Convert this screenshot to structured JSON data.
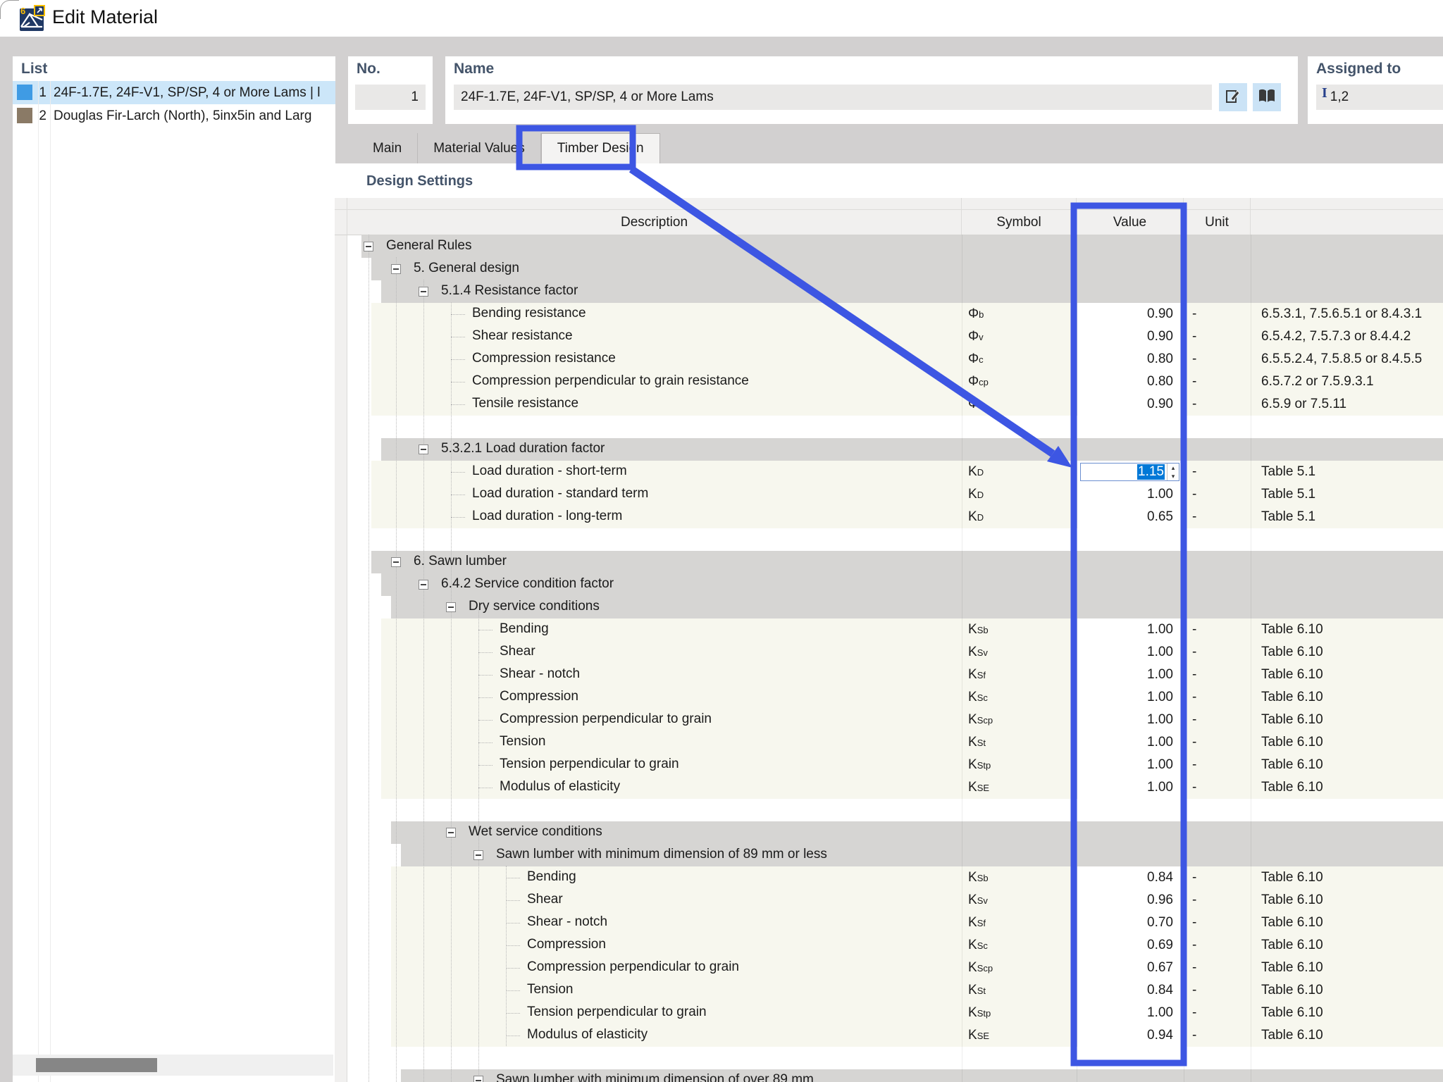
{
  "window": {
    "title": "Edit Material"
  },
  "colors": {
    "annotation_blue": "#3d56e3",
    "selection_blue": "#0078d7",
    "header_text": "#44546a",
    "list_item1_swatch": "#3f9be4",
    "list_item2_swatch": "#8a7a66"
  },
  "list_panel": {
    "title": "List",
    "items": [
      {
        "no": "1",
        "name": "24F-1.7E, 24F-V1, SP/SP, 4 or More Lams | l",
        "swatch": "#3f9be4",
        "selected": true
      },
      {
        "no": "2",
        "name": "Douglas Fir-Larch (North), 5inx5in and Larg",
        "swatch": "#8a7a66",
        "selected": false
      }
    ]
  },
  "no_panel": {
    "label": "No.",
    "value": "1"
  },
  "name_panel": {
    "label": "Name",
    "value": "24F-1.7E, 24F-V1, SP/SP, 4 or More Lams"
  },
  "assigned_panel": {
    "label": "Assigned to",
    "marker": "I",
    "value": "1,2"
  },
  "tabs": [
    {
      "label": "Main",
      "active": false
    },
    {
      "label": "Material Values",
      "active": false
    },
    {
      "label": "Timber Design",
      "active": true
    }
  ],
  "section_title": "Design Settings",
  "table": {
    "headers": {
      "description": "Description",
      "symbol": "Symbol",
      "value": "Value",
      "unit": "Unit"
    },
    "rows": [
      {
        "t": "g",
        "d": 0,
        "label": "General Rules"
      },
      {
        "t": "g",
        "d": 1,
        "label": "5. General design"
      },
      {
        "t": "g",
        "d": 2,
        "label": "5.1.4 Resistance factor"
      },
      {
        "t": "l",
        "d": 3,
        "label": "Bending resistance",
        "sym": "Φ",
        "sub": "b",
        "value": "0.90",
        "unit": "-",
        "ref": "6.5.3.1, 7.5.6.5.1 or 8.4.3.1"
      },
      {
        "t": "l",
        "d": 3,
        "label": "Shear resistance",
        "sym": "Φ",
        "sub": "v",
        "value": "0.90",
        "unit": "-",
        "ref": "6.5.4.2, 7.5.7.3 or 8.4.4.2"
      },
      {
        "t": "l",
        "d": 3,
        "label": "Compression resistance",
        "sym": "Φ",
        "sub": "c",
        "value": "0.80",
        "unit": "-",
        "ref": "6.5.5.2.4, 7.5.8.5 or 8.4.5.5"
      },
      {
        "t": "l",
        "d": 3,
        "label": "Compression perpendicular to grain resistance",
        "sym": "Φ",
        "sub": "cp",
        "value": "0.80",
        "unit": "-",
        "ref": "6.5.7.2 or 7.5.9.3.1"
      },
      {
        "t": "l",
        "d": 3,
        "label": "Tensile resistance",
        "sym": "Φ",
        "sub": "t",
        "value": "0.90",
        "unit": "-",
        "ref": "6.5.9 or 7.5.11"
      },
      {
        "t": "e"
      },
      {
        "t": "g",
        "d": 2,
        "label": "5.3.2.1 Load duration factor"
      },
      {
        "t": "l",
        "d": 3,
        "label": "Load duration - short-term",
        "sym": "K",
        "sub": "D",
        "value": "1.15",
        "unit": "-",
        "ref": "Table 5.1",
        "input": true,
        "selected_text": "1.15"
      },
      {
        "t": "l",
        "d": 3,
        "label": "Load duration - standard term",
        "sym": "K",
        "sub": "D",
        "value": "1.00",
        "unit": "-",
        "ref": "Table 5.1"
      },
      {
        "t": "l",
        "d": 3,
        "label": "Load duration - long-term",
        "sym": "K",
        "sub": "D",
        "value": "0.65",
        "unit": "-",
        "ref": "Table 5.1"
      },
      {
        "t": "e"
      },
      {
        "t": "g",
        "d": 1,
        "label": "6. Sawn lumber"
      },
      {
        "t": "g",
        "d": 2,
        "label": "6.4.2 Service condition factor"
      },
      {
        "t": "g",
        "d": 3,
        "label": "Dry service conditions"
      },
      {
        "t": "l",
        "d": 4,
        "label": "Bending",
        "sym": "K",
        "sub": "Sb",
        "value": "1.00",
        "unit": "-",
        "ref": "Table 6.10"
      },
      {
        "t": "l",
        "d": 4,
        "label": "Shear",
        "sym": "K",
        "sub": "Sv",
        "value": "1.00",
        "unit": "-",
        "ref": "Table 6.10"
      },
      {
        "t": "l",
        "d": 4,
        "label": "Shear - notch",
        "sym": "K",
        "sub": "Sf",
        "value": "1.00",
        "unit": "-",
        "ref": "Table 6.10"
      },
      {
        "t": "l",
        "d": 4,
        "label": "Compression",
        "sym": "K",
        "sub": "Sc",
        "value": "1.00",
        "unit": "-",
        "ref": "Table 6.10"
      },
      {
        "t": "l",
        "d": 4,
        "label": "Compression perpendicular to grain",
        "sym": "K",
        "sub": "Scp",
        "value": "1.00",
        "unit": "-",
        "ref": "Table 6.10"
      },
      {
        "t": "l",
        "d": 4,
        "label": "Tension",
        "sym": "K",
        "sub": "St",
        "value": "1.00",
        "unit": "-",
        "ref": "Table 6.10"
      },
      {
        "t": "l",
        "d": 4,
        "label": "Tension perpendicular to grain",
        "sym": "K",
        "sub": "Stp",
        "value": "1.00",
        "unit": "-",
        "ref": "Table 6.10"
      },
      {
        "t": "l",
        "d": 4,
        "label": "Modulus of elasticity",
        "sym": "K",
        "sub": "SE",
        "value": "1.00",
        "unit": "-",
        "ref": "Table 6.10"
      },
      {
        "t": "e"
      },
      {
        "t": "g",
        "d": 3,
        "label": "Wet service conditions"
      },
      {
        "t": "g",
        "d": 4,
        "label": "Sawn lumber with minimum dimension of 89 mm or less"
      },
      {
        "t": "l",
        "d": 5,
        "label": "Bending",
        "sym": "K",
        "sub": "Sb",
        "value": "0.84",
        "unit": "-",
        "ref": "Table 6.10"
      },
      {
        "t": "l",
        "d": 5,
        "label": "Shear",
        "sym": "K",
        "sub": "Sv",
        "value": "0.96",
        "unit": "-",
        "ref": "Table 6.10"
      },
      {
        "t": "l",
        "d": 5,
        "label": "Shear - notch",
        "sym": "K",
        "sub": "Sf",
        "value": "0.70",
        "unit": "-",
        "ref": "Table 6.10"
      },
      {
        "t": "l",
        "d": 5,
        "label": "Compression",
        "sym": "K",
        "sub": "Sc",
        "value": "0.69",
        "unit": "-",
        "ref": "Table 6.10"
      },
      {
        "t": "l",
        "d": 5,
        "label": "Compression perpendicular to grain",
        "sym": "K",
        "sub": "Scp",
        "value": "0.67",
        "unit": "-",
        "ref": "Table 6.10"
      },
      {
        "t": "l",
        "d": 5,
        "label": "Tension",
        "sym": "K",
        "sub": "St",
        "value": "0.84",
        "unit": "-",
        "ref": "Table 6.10"
      },
      {
        "t": "l",
        "d": 5,
        "label": "Tension perpendicular to grain",
        "sym": "K",
        "sub": "Stp",
        "value": "1.00",
        "unit": "-",
        "ref": "Table 6.10"
      },
      {
        "t": "l",
        "d": 5,
        "label": "Modulus of elasticity",
        "sym": "K",
        "sub": "SE",
        "value": "0.94",
        "unit": "-",
        "ref": "Table 6.10"
      },
      {
        "t": "e"
      },
      {
        "t": "g",
        "d": 4,
        "label": "Sawn lumber with minimum dimension of over 89 mm"
      }
    ]
  }
}
